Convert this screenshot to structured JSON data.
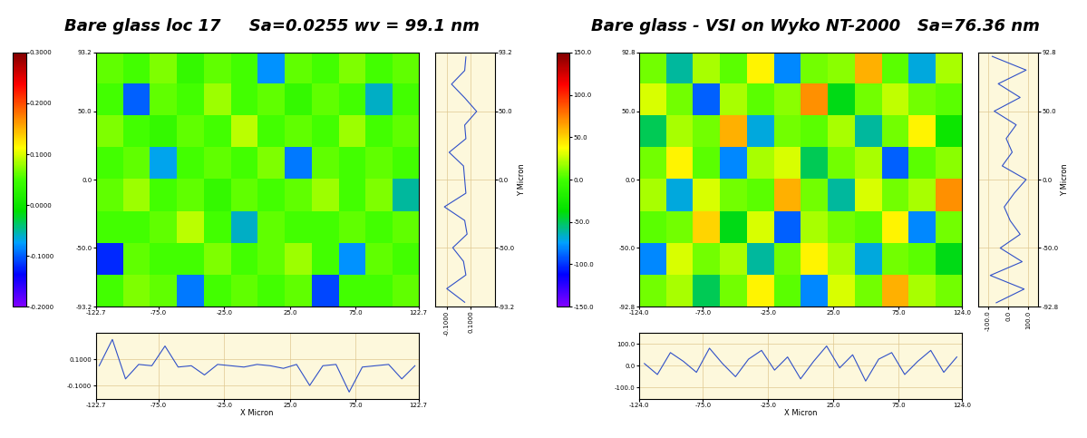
{
  "chart_data": [
    {
      "type": "heatmap",
      "title": "Bare glass loc 17     Sa=0.0255 wv = 99.1 nm",
      "xlim": [
        -122.7,
        122.7
      ],
      "ylim": [
        -93.2,
        93.2
      ],
      "xticks": [
        -122.7,
        -75.0,
        -25.0,
        25.0,
        75.0,
        122.7
      ],
      "yticks": [
        -93.2,
        -50.0,
        0.0,
        50.0,
        93.2
      ],
      "cells": [
        [
          0.06,
          0.05,
          0.07,
          0.04,
          0.06,
          0.05,
          -0.08,
          0.06,
          0.05,
          0.07,
          0.05,
          0.06
        ],
        [
          0.05,
          -0.1,
          0.06,
          0.05,
          0.08,
          0.05,
          0.06,
          0.04,
          0.06,
          0.05,
          -0.06,
          0.05
        ],
        [
          0.07,
          0.05,
          0.04,
          0.06,
          0.05,
          0.09,
          0.05,
          0.06,
          0.05,
          0.08,
          0.05,
          0.06
        ],
        [
          0.05,
          0.06,
          -0.07,
          0.05,
          0.06,
          0.05,
          0.07,
          -0.09,
          0.06,
          0.05,
          0.06,
          0.05
        ],
        [
          0.06,
          0.08,
          0.05,
          0.06,
          0.04,
          0.06,
          0.05,
          0.06,
          0.08,
          0.05,
          0.07,
          -0.05
        ],
        [
          0.05,
          0.05,
          0.06,
          0.09,
          0.05,
          -0.06,
          0.06,
          0.05,
          0.05,
          0.06,
          0.05,
          0.06
        ],
        [
          -0.12,
          0.06,
          0.05,
          0.05,
          0.07,
          0.05,
          0.06,
          0.08,
          0.05,
          -0.08,
          0.06,
          0.05
        ],
        [
          0.05,
          0.07,
          0.06,
          -0.09,
          0.05,
          0.06,
          0.05,
          0.06,
          -0.11,
          0.05,
          0.05,
          0.06
        ]
      ],
      "colorbar_range": [
        -0.2,
        0.3
      ],
      "colorbar_ticks": [
        {
          "value": -0.2,
          "label": "-0.2000"
        },
        {
          "value": -0.1,
          "label": "-0.1000"
        },
        {
          "value": 0.0,
          "label": "0.0000"
        },
        {
          "value": 0.1,
          "label": "0.1000"
        },
        {
          "value": 0.2,
          "label": "0.2000"
        },
        {
          "value": 0.3,
          "label": "0.3000"
        }
      ],
      "x_profile": {
        "xlabel": "X Micron",
        "color": "#3050c8",
        "x": [
          -120,
          -110,
          -100,
          -90,
          -80,
          -70,
          -60,
          -50,
          -40,
          -30,
          -20,
          -10,
          0,
          10,
          20,
          30,
          40,
          50,
          60,
          70,
          80,
          90,
          100,
          110,
          120
        ],
        "values": [
          0.05,
          0.25,
          -0.05,
          0.06,
          0.05,
          0.2,
          0.04,
          0.05,
          -0.02,
          0.06,
          0.05,
          0.04,
          0.06,
          0.05,
          0.03,
          0.06,
          -0.1,
          0.05,
          0.06,
          -0.15,
          0.04,
          0.05,
          0.06,
          -0.05,
          0.05
        ],
        "ylim": [
          -0.2,
          0.3
        ],
        "yticks": [
          {
            "value": -0.1,
            "label": "-0.1000"
          },
          {
            "value": 0.1,
            "label": "0.1000"
          }
        ]
      },
      "y_profile": {
        "ylabel": "Y Micron",
        "color": "#3050c8",
        "y": [
          -90,
          -80,
          -70,
          -60,
          -50,
          -40,
          -30,
          -20,
          -10,
          0,
          10,
          20,
          30,
          40,
          50,
          60,
          70,
          80,
          90
        ],
        "values": [
          0.05,
          -0.1,
          0.06,
          0.04,
          -0.05,
          0.07,
          0.05,
          -0.12,
          0.06,
          0.05,
          0.04,
          -0.08,
          0.06,
          0.05,
          0.15,
          0.05,
          -0.06,
          0.05,
          0.06
        ],
        "xlim": [
          -0.2,
          0.3
        ],
        "xticks": [
          {
            "value": -0.1,
            "label": "-0.1000"
          },
          {
            "value": 0.1,
            "label": "0.1000"
          }
        ]
      }
    },
    {
      "type": "heatmap",
      "title": "Bare glass - VSI on Wyko NT-2000   Sa=76.36 nm",
      "xlim": [
        -124.0,
        124.0
      ],
      "ylim": [
        -92.8,
        92.8
      ],
      "xticks": [
        -124.0,
        -75.0,
        -25.0,
        25.0,
        75.0,
        124.0
      ],
      "yticks": [
        -92.8,
        -50.0,
        0.0,
        50.0,
        92.8
      ],
      "cells": [
        [
          10,
          -60,
          20,
          5,
          40,
          -80,
          10,
          15,
          60,
          5,
          -70,
          20
        ],
        [
          30,
          10,
          -90,
          20,
          5,
          15,
          70,
          -40,
          10,
          25,
          10,
          5
        ],
        [
          -50,
          20,
          10,
          60,
          -70,
          10,
          5,
          20,
          -60,
          10,
          40,
          -30
        ],
        [
          10,
          40,
          5,
          -80,
          20,
          30,
          -50,
          10,
          20,
          -90,
          5,
          15
        ],
        [
          20,
          -70,
          30,
          10,
          5,
          60,
          10,
          -60,
          30,
          10,
          20,
          70
        ],
        [
          5,
          10,
          50,
          -40,
          30,
          -90,
          20,
          10,
          5,
          40,
          -80,
          10
        ],
        [
          -80,
          30,
          10,
          20,
          -60,
          10,
          40,
          20,
          -70,
          10,
          5,
          -40
        ],
        [
          10,
          20,
          -50,
          10,
          40,
          5,
          -80,
          30,
          10,
          60,
          20,
          10
        ]
      ],
      "colorbar_range": [
        -150.0,
        150.0
      ],
      "colorbar_ticks": [
        -150.0,
        -100.0,
        -50.0,
        0.0,
        50.0,
        100.0,
        150.0
      ],
      "x_profile": {
        "xlabel": "X Micron",
        "color": "#3050c8",
        "x": [
          -120,
          -110,
          -100,
          -90,
          -80,
          -70,
          -60,
          -50,
          -40,
          -30,
          -20,
          -10,
          0,
          10,
          20,
          30,
          40,
          50,
          60,
          70,
          80,
          90,
          100,
          110,
          120
        ],
        "values": [
          10,
          -40,
          60,
          20,
          -30,
          80,
          10,
          -50,
          30,
          70,
          -20,
          40,
          -60,
          20,
          90,
          -10,
          50,
          -70,
          30,
          60,
          -40,
          20,
          70,
          -30,
          40
        ],
        "ylim": [
          -150.0,
          150.0
        ],
        "yticks": [
          -100.0,
          0.0,
          100.0
        ]
      },
      "y_profile": {
        "ylabel": "Y Micron",
        "color": "#3050c8",
        "y": [
          -90,
          -80,
          -70,
          -60,
          -50,
          -40,
          -30,
          -20,
          -10,
          0,
          10,
          20,
          30,
          40,
          50,
          60,
          70,
          80,
          90
        ],
        "values": [
          -60,
          80,
          -90,
          70,
          -40,
          60,
          10,
          -20,
          30,
          90,
          -30,
          20,
          -10,
          40,
          -70,
          60,
          -50,
          90,
          -80
        ],
        "xlim": [
          -150.0,
          150.0
        ],
        "xticks": [
          -100.0,
          0.0,
          100.0
        ]
      }
    }
  ]
}
